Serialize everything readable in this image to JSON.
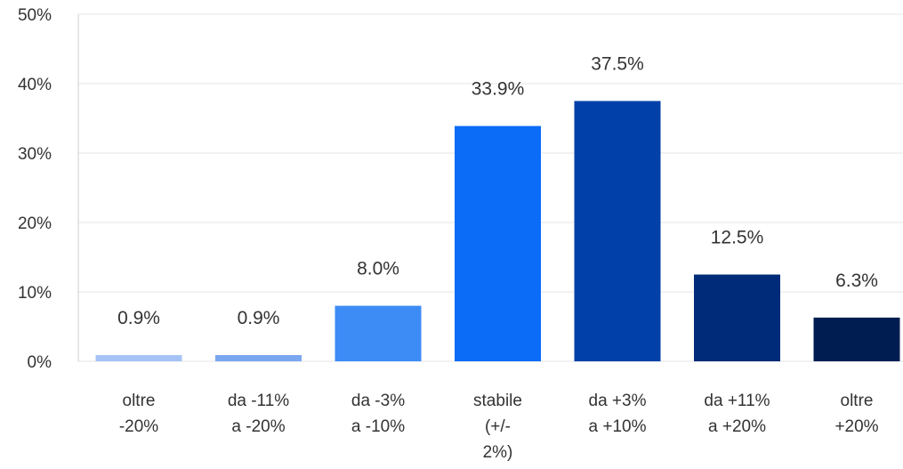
{
  "chart_data": {
    "type": "bar",
    "categories": [
      [
        "oltre",
        "-20%"
      ],
      [
        "da -11%",
        "a -20%"
      ],
      [
        "da -3%",
        "a -10%"
      ],
      [
        "stabile",
        "(+/-",
        "2%)"
      ],
      [
        "da +3%",
        "a +10%"
      ],
      [
        "da +11%",
        "a +20%"
      ],
      [
        "oltre",
        "+20%"
      ]
    ],
    "values": [
      0.9,
      0.9,
      8.0,
      33.9,
      37.5,
      12.5,
      6.3
    ],
    "value_labels": [
      "0.9%",
      "0.9%",
      "8.0%",
      "33.9%",
      "37.5%",
      "12.5%",
      "6.3%"
    ],
    "bar_colors": [
      "#a7c3f5",
      "#7aa7f0",
      "#3d8cf5",
      "#0a6cf7",
      "#0040a8",
      "#002b78",
      "#001d52"
    ],
    "ylim": [
      0,
      50
    ],
    "yticks": [
      0,
      10,
      20,
      30,
      40,
      50
    ],
    "ytick_labels": [
      "0%",
      "10%",
      "20%",
      "30%",
      "40%",
      "50%"
    ],
    "title": "",
    "xlabel": "",
    "ylabel": "",
    "grid": true,
    "legend": "none"
  }
}
